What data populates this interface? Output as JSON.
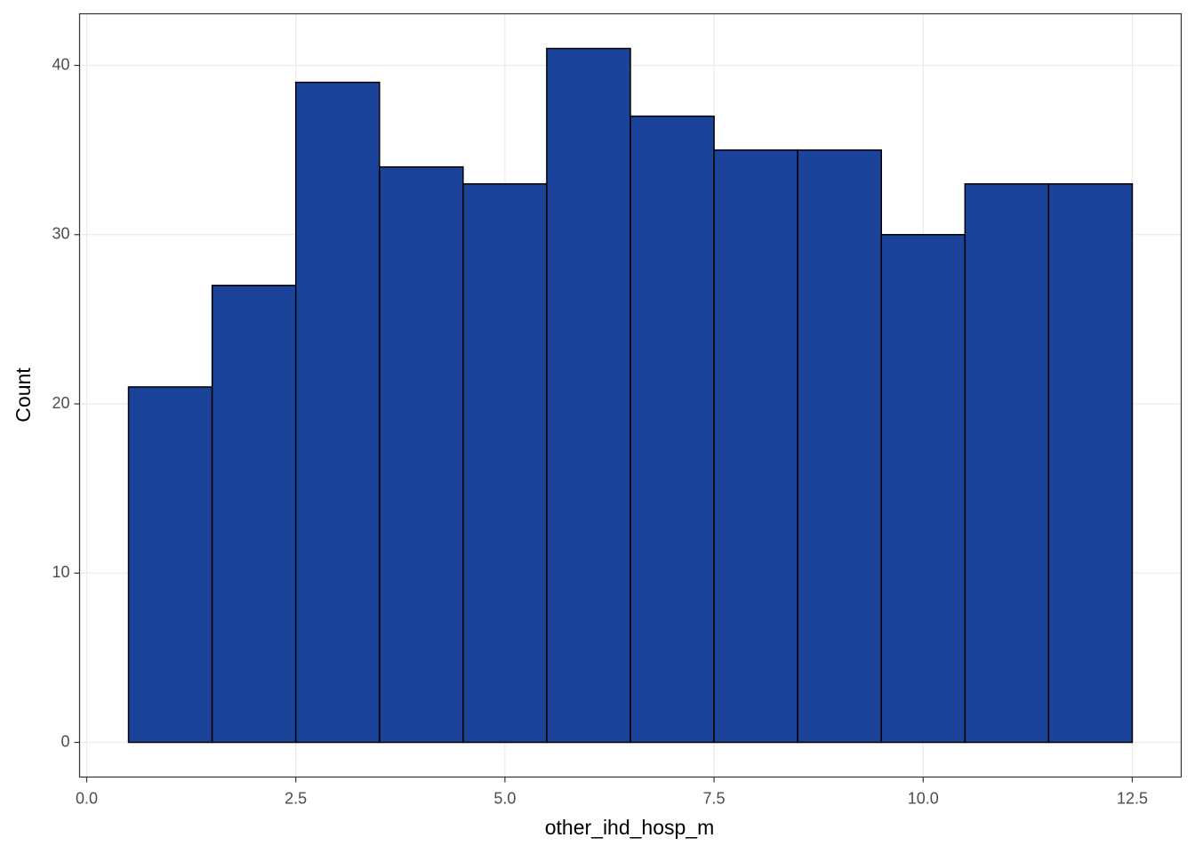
{
  "chart_data": {
    "type": "histogram",
    "x_label": "other_ihd_hosp_m",
    "y_label": "Count",
    "bins": [
      0.5,
      1.5,
      2.5,
      3.5,
      4.5,
      5.5,
      6.5,
      7.5,
      8.5,
      9.5,
      10.5,
      11.5,
      12.5
    ],
    "values": [
      21,
      27,
      39,
      34,
      33,
      41,
      37,
      35,
      35,
      30,
      33,
      33
    ],
    "color": "#1a4399",
    "edge_color": "#000000",
    "xlim": [
      -0.085,
      13.085
    ],
    "ylim": [
      -2.05,
      43.05
    ],
    "xticks": [
      {
        "value": 0,
        "label": "0.0"
      },
      2.5,
      {
        "value": 5,
        "label": "5.0"
      },
      7.5,
      {
        "value": 10,
        "label": "10.0"
      },
      12.5
    ],
    "yticks": [
      0,
      10,
      20,
      30,
      40
    ],
    "grid": true
  }
}
